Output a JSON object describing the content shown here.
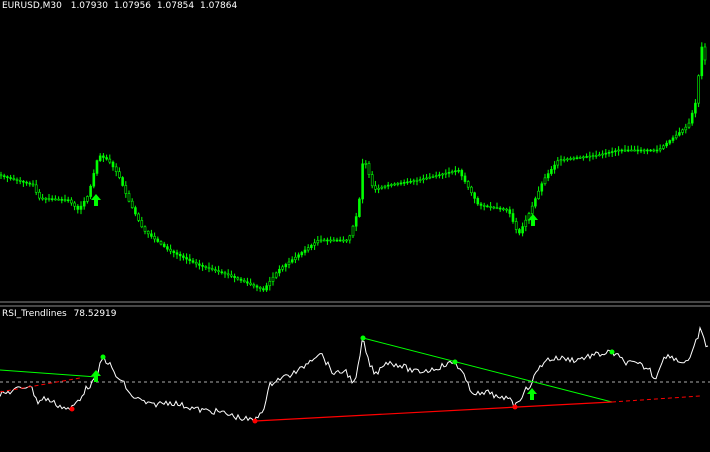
{
  "header": {
    "symbol": "EURUSD,M30",
    "prices": [
      "1.07930",
      "1.07956",
      "1.07854",
      "1.07864"
    ]
  },
  "indicator": {
    "name": "RSI_Trendlines",
    "value": "78.52919"
  }
}
